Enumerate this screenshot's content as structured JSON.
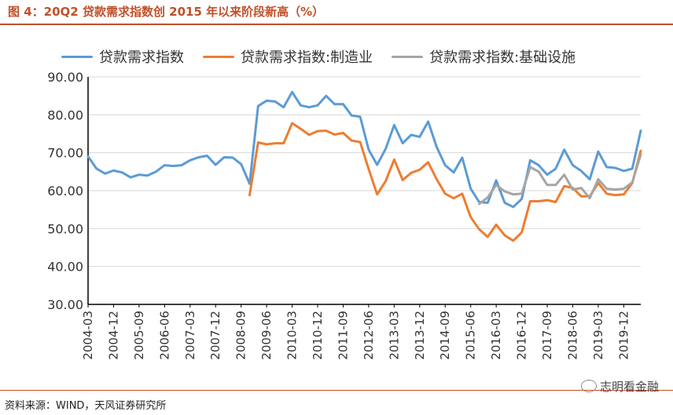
{
  "figure": {
    "title": "图 4：20Q2 贷款需求指数创 2015 年以来阶段新高（%）",
    "source": "资料来源：WIND，天风证券研究所",
    "brand": "志明看金融",
    "brand_icon": "wechat-icon"
  },
  "chart_data": {
    "type": "line",
    "title": "",
    "xlabel": "",
    "ylabel": "",
    "ylim": [
      30,
      90
    ],
    "yticks": [
      "30.00",
      "40.00",
      "50.00",
      "60.00",
      "70.00",
      "80.00",
      "90.00"
    ],
    "grid": true,
    "legend_position": "top",
    "x": [
      "2004-03",
      "2004-06",
      "2004-09",
      "2004-12",
      "2005-03",
      "2005-06",
      "2005-09",
      "2005-12",
      "2006-03",
      "2006-06",
      "2006-09",
      "2006-12",
      "2007-03",
      "2007-06",
      "2007-09",
      "2007-12",
      "2008-03",
      "2008-06",
      "2008-09",
      "2008-12",
      "2009-03",
      "2009-06",
      "2009-09",
      "2009-12",
      "2010-03",
      "2010-06",
      "2010-09",
      "2010-12",
      "2011-03",
      "2011-06",
      "2011-09",
      "2011-12",
      "2012-03",
      "2012-06",
      "2012-09",
      "2012-12",
      "2013-03",
      "2013-06",
      "2013-09",
      "2013-12",
      "2014-03",
      "2014-06",
      "2014-09",
      "2014-12",
      "2015-03",
      "2015-06",
      "2015-09",
      "2015-12",
      "2016-03",
      "2016-06",
      "2016-09",
      "2016-12",
      "2017-03",
      "2017-06",
      "2017-09",
      "2017-12",
      "2018-03",
      "2018-06",
      "2018-09",
      "2018-12",
      "2019-03",
      "2019-06",
      "2019-09",
      "2019-12",
      "2020-03",
      "2020-06"
    ],
    "xticks": [
      "2004-03",
      "2004-12",
      "2005-09",
      "2006-06",
      "2007-03",
      "2007-12",
      "2008-09",
      "2009-06",
      "2010-03",
      "2010-12",
      "2011-09",
      "2012-06",
      "2013-03",
      "2013-12",
      "2014-09",
      "2015-06",
      "2016-03",
      "2016-12",
      "2017-09",
      "2018-06",
      "2019-03",
      "2019-12"
    ],
    "series": [
      {
        "name": "贷款需求指数",
        "color": "#5b9bd5",
        "values": [
          69.0,
          65.8,
          64.5,
          65.3,
          64.8,
          63.5,
          64.2,
          64.0,
          65.0,
          66.7,
          66.5,
          66.7,
          68.0,
          68.8,
          69.2,
          66.8,
          68.8,
          68.7,
          67.0,
          61.8,
          82.3,
          83.7,
          83.5,
          82.0,
          86.0,
          82.5,
          82.0,
          82.5,
          85.0,
          82.8,
          82.8,
          79.8,
          79.5,
          70.8,
          66.8,
          71.0,
          77.3,
          72.5,
          74.7,
          74.2,
          78.2,
          71.5,
          66.7,
          64.8,
          68.7,
          60.5,
          57.0,
          56.8,
          62.7,
          56.8,
          55.7,
          57.8,
          68.0,
          66.7,
          64.2,
          65.8,
          70.8,
          66.7,
          65.2,
          63.0,
          70.3,
          66.2,
          66.0,
          65.2,
          65.8,
          75.8
        ]
      },
      {
        "name": "贷款需求指数:制造业",
        "color": "#ed7d31",
        "values": [
          null,
          null,
          null,
          null,
          null,
          null,
          null,
          null,
          null,
          null,
          null,
          null,
          null,
          null,
          null,
          null,
          null,
          null,
          null,
          58.8,
          72.7,
          72.2,
          72.5,
          72.5,
          77.8,
          76.3,
          74.7,
          75.7,
          75.8,
          74.8,
          75.2,
          73.2,
          72.8,
          65.7,
          59.0,
          62.5,
          68.2,
          62.8,
          64.7,
          65.5,
          67.5,
          63.0,
          59.2,
          58.0,
          59.2,
          53.0,
          49.8,
          47.8,
          51.0,
          48.2,
          46.8,
          49.0,
          57.2,
          57.2,
          57.5,
          57.0,
          61.2,
          60.7,
          58.5,
          58.5,
          62.0,
          59.2,
          58.8,
          59.0,
          62.0,
          70.5
        ]
      },
      {
        "name": "贷款需求指数:基础设施",
        "color": "#a5a5a5",
        "values": [
          null,
          null,
          null,
          null,
          null,
          null,
          null,
          null,
          null,
          null,
          null,
          null,
          null,
          null,
          null,
          null,
          null,
          null,
          null,
          null,
          null,
          null,
          null,
          null,
          null,
          null,
          null,
          null,
          null,
          null,
          null,
          null,
          null,
          null,
          null,
          null,
          null,
          null,
          null,
          null,
          null,
          null,
          null,
          null,
          null,
          null,
          56.5,
          58.2,
          61.5,
          59.8,
          59.0,
          59.2,
          66.2,
          65.0,
          61.5,
          61.5,
          64.2,
          60.3,
          60.7,
          58.0,
          63.0,
          60.5,
          60.3,
          60.5,
          62.2,
          69.5
        ]
      }
    ]
  }
}
